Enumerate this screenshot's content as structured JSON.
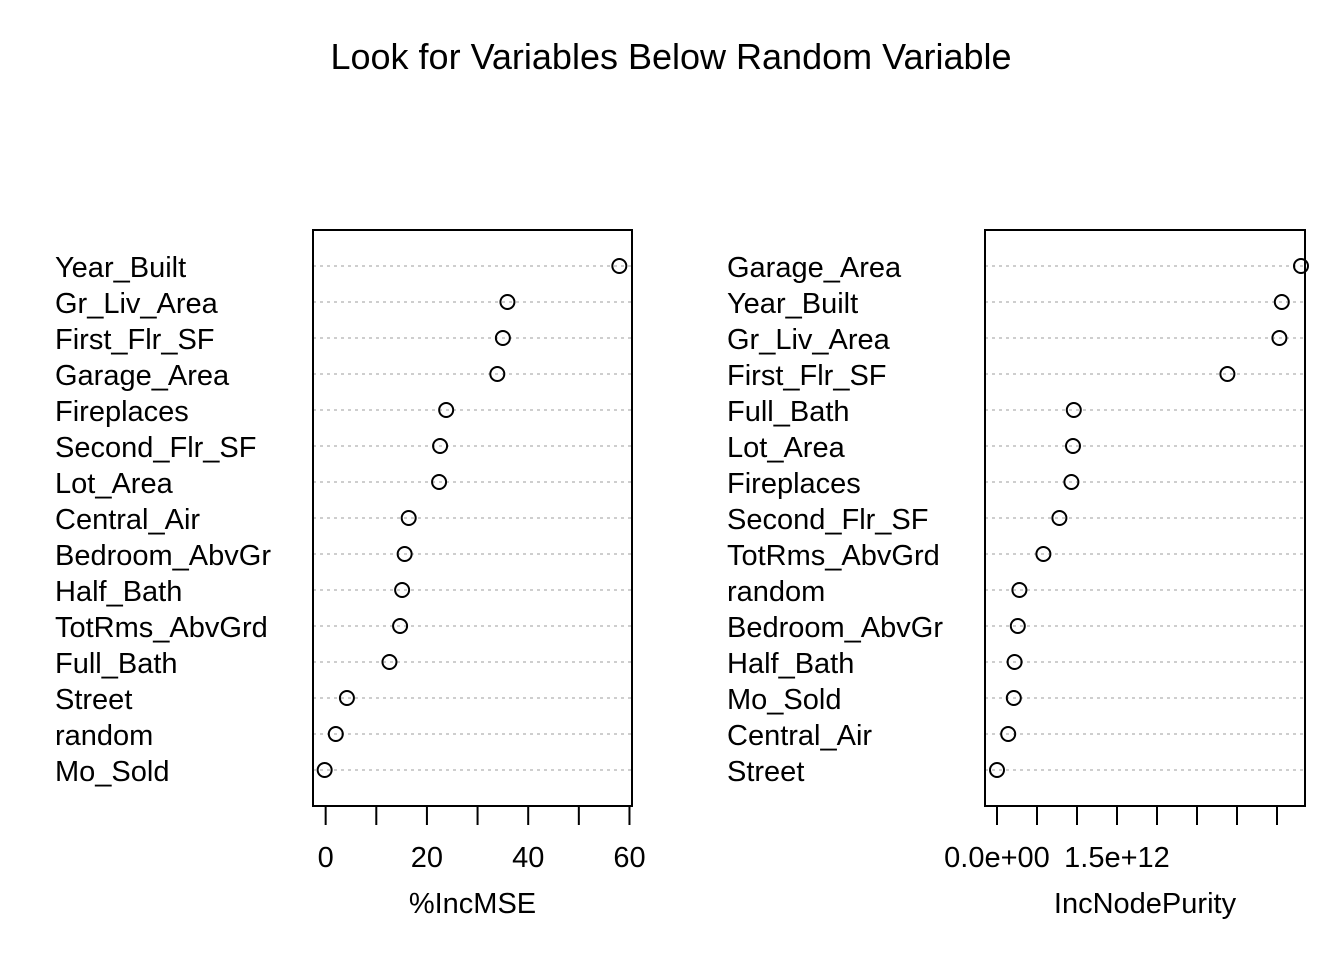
{
  "title": "Look for Variables Below Random Variable",
  "chart_data": [
    {
      "type": "scatter",
      "subtype": "dotchart",
      "xlabel": "%IncMSE",
      "xlim": [
        -2.5,
        60.5
      ],
      "xticks": [
        0,
        10,
        20,
        30,
        40,
        50,
        60
      ],
      "xtick_labels": [
        "0",
        "",
        "20",
        "",
        "40",
        "",
        "60"
      ],
      "grid": "dotted horizontal",
      "categories": [
        "Year_Built",
        "Gr_Liv_Area",
        "First_Flr_SF",
        "Garage_Area",
        "Fireplaces",
        "Second_Flr_SF",
        "Lot_Area",
        "Central_Air",
        "Bedroom_AbvGr",
        "Half_Bath",
        "TotRms_AbvGrd",
        "Full_Bath",
        "Street",
        "random",
        "Mo_Sold"
      ],
      "values": [
        58.0,
        35.9,
        35.0,
        33.9,
        23.8,
        22.6,
        22.4,
        16.4,
        15.6,
        15.1,
        14.7,
        12.6,
        4.2,
        2.0,
        -0.2
      ]
    },
    {
      "type": "scatter",
      "subtype": "dotchart",
      "xlabel": "IncNodePurity",
      "xlim": [
        -150000000000.0,
        3850000000000.0
      ],
      "xticks": [
        0,
        500000000000,
        1000000000000,
        1500000000000,
        2000000000000,
        2500000000000,
        3000000000000,
        3500000000000
      ],
      "xtick_labels": [
        "0.0e+00",
        "",
        "",
        "1.5e+12",
        "",
        "",
        "",
        ""
      ],
      "grid": "dotted horizontal",
      "categories": [
        "Garage_Area",
        "Year_Built",
        "Gr_Liv_Area",
        "First_Flr_SF",
        "Full_Bath",
        "Lot_Area",
        "Fireplaces",
        "Second_Flr_SF",
        "TotRms_AbvGrd",
        "random",
        "Bedroom_AbvGr",
        "Half_Bath",
        "Mo_Sold",
        "Central_Air",
        "Street"
      ],
      "values": [
        3800000000000.0,
        3560000000000.0,
        3530000000000.0,
        2880000000000.0,
        960000000000.0,
        950000000000.0,
        930000000000.0,
        780000000000.0,
        580000000000.0,
        280000000000.0,
        260000000000.0,
        220000000000.0,
        210000000000.0,
        140000000000.0,
        0.0
      ]
    }
  ]
}
